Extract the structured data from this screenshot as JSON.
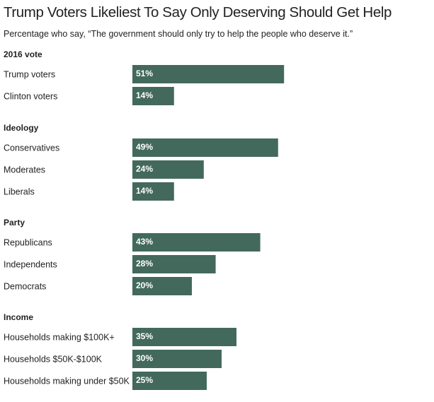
{
  "chart_data": {
    "type": "bar",
    "orientation": "horizontal",
    "title": "Trump Voters Likeliest To Say Only Deserving Should Get Help",
    "subtitle": "Percentage who say, “The government should only try to help the people who deserve it.”",
    "unit": "%",
    "bar_color": "#43695c",
    "groups": [
      {
        "name": "2016 vote",
        "items": [
          {
            "label": "Trump voters",
            "value": 51,
            "display": "51%"
          },
          {
            "label": "Clinton voters",
            "value": 14,
            "display": "14%"
          }
        ]
      },
      {
        "name": "Ideology",
        "items": [
          {
            "label": "Conservatives",
            "value": 49,
            "display": "49%"
          },
          {
            "label": "Moderates",
            "value": 24,
            "display": "24%"
          },
          {
            "label": "Liberals",
            "value": 14,
            "display": "14%"
          }
        ]
      },
      {
        "name": "Party",
        "items": [
          {
            "label": "Republicans",
            "value": 43,
            "display": "43%"
          },
          {
            "label": "Independents",
            "value": 28,
            "display": "28%"
          },
          {
            "label": "Democrats",
            "value": 20,
            "display": "20%"
          }
        ]
      },
      {
        "name": "Income",
        "items": [
          {
            "label": "Households making $100K+",
            "value": 35,
            "display": "35%"
          },
          {
            "label": "Households $50K-$100K",
            "value": 30,
            "display": "30%"
          },
          {
            "label": "Households making under $50K",
            "value": 25,
            "display": "25%"
          }
        ]
      }
    ]
  }
}
